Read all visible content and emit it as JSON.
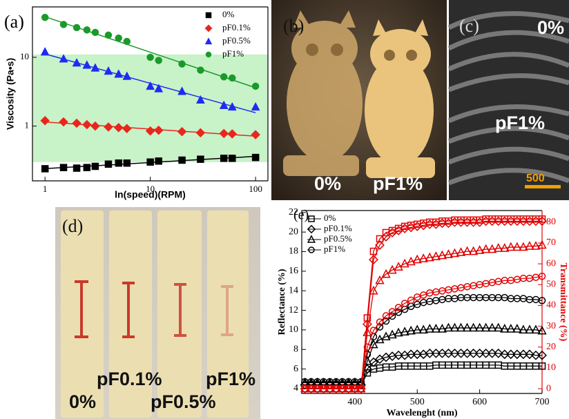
{
  "chart_data": [
    {
      "type": "scatter",
      "panel_label": "(a)",
      "x_label": "ln(speed)(RPM)",
      "y_label": "Viscosity (Pa•s)",
      "xlog": true,
      "ylog": true,
      "xlim": [
        0.76,
        131
      ],
      "ylim": [
        0.16,
        54
      ],
      "xticks": [
        1,
        10,
        100
      ],
      "yticks": [
        1,
        10
      ],
      "shaded_range": [
        0.3,
        11
      ],
      "shade_color": "#c8f2c8",
      "fit_lines": true,
      "filled_markers": true,
      "legend": "upper right",
      "x": [
        1,
        1.5,
        2,
        2.5,
        3,
        4,
        5,
        6,
        10,
        12,
        20,
        30,
        50,
        60,
        100
      ],
      "series": [
        {
          "name": "0%",
          "color": "#000000",
          "marker": "square",
          "values": [
            0.24,
            0.25,
            0.245,
            0.25,
            0.26,
            0.28,
            0.29,
            0.29,
            0.3,
            0.31,
            0.32,
            0.33,
            0.34,
            0.34,
            0.35
          ]
        },
        {
          "name": "pF0.1%",
          "color": "#e8261c",
          "marker": "diamond",
          "values": [
            1.2,
            1.15,
            1.1,
            1.05,
            1.0,
            0.97,
            0.95,
            0.92,
            0.85,
            0.87,
            0.83,
            0.8,
            0.78,
            0.77,
            0.75
          ]
        },
        {
          "name": "pF0.5%",
          "color": "#1c2cf0",
          "marker": "triangle",
          "values": [
            12,
            9.5,
            8.3,
            7.7,
            7,
            6.3,
            5.7,
            5.3,
            3.8,
            3.5,
            3.2,
            2.4,
            2,
            1.9,
            1.9
          ]
        },
        {
          "name": "pF1%",
          "color": "#1a9a2a",
          "marker": "circle",
          "values": [
            38,
            30,
            27,
            25,
            23,
            21,
            19,
            17,
            10,
            9,
            8,
            6.5,
            5.2,
            5,
            3.8
          ]
        }
      ]
    },
    {
      "type": "line",
      "panel_label": "(e)",
      "x_label": "Wavelenght (nm)",
      "y_label": "Reflectance (%)",
      "y2_label": "Transmittance (%)",
      "xlim": [
        315,
        700
      ],
      "ylim": [
        3.5,
        22.2
      ],
      "y2lim": [
        -2.3,
        85.6
      ],
      "xticks": [
        400,
        500,
        600,
        700
      ],
      "yticks": [
        4,
        6,
        8,
        10,
        12,
        14,
        16,
        18,
        20,
        22
      ],
      "y2ticks": [
        0,
        10,
        20,
        30,
        40,
        50,
        60,
        70,
        80
      ],
      "y2_color": "#e00000",
      "filled_markers": false,
      "legend": "upper left",
      "x": [
        320,
        330,
        340,
        350,
        360,
        370,
        380,
        390,
        400,
        410,
        420,
        430,
        440,
        450,
        460,
        470,
        480,
        490,
        500,
        510,
        520,
        530,
        540,
        550,
        560,
        570,
        580,
        590,
        600,
        610,
        620,
        630,
        640,
        650,
        660,
        670,
        680,
        690,
        700
      ],
      "series": [
        {
          "name": "0%",
          "color": "#000000",
          "marker": "square",
          "values": [
            4.3,
            4.3,
            4.3,
            4.3,
            4.3,
            4.3,
            4.3,
            4.3,
            4.3,
            4.3,
            5.6,
            6.0,
            6.1,
            6.2,
            6.2,
            6.3,
            6.3,
            6.3,
            6.3,
            6.3,
            6.3,
            6.4,
            6.4,
            6.4,
            6.4,
            6.4,
            6.4,
            6.4,
            6.4,
            6.4,
            6.4,
            6.4,
            6.3,
            6.3,
            6.3,
            6.3,
            6.3,
            6.3,
            6.3
          ]
        },
        {
          "name": "pF0.1%",
          "color": "#000000",
          "marker": "diamond",
          "values": [
            4.4,
            4.4,
            4.4,
            4.4,
            4.4,
            4.4,
            4.4,
            4.4,
            4.4,
            4.4,
            6.0,
            6.7,
            7.0,
            7.2,
            7.3,
            7.4,
            7.4,
            7.5,
            7.5,
            7.5,
            7.6,
            7.6,
            7.6,
            7.6,
            7.6,
            7.6,
            7.6,
            7.6,
            7.6,
            7.6,
            7.6,
            7.6,
            7.5,
            7.5,
            7.5,
            7.5,
            7.5,
            7.4,
            7.4
          ]
        },
        {
          "name": "pF0.5%",
          "color": "#000000",
          "marker": "triangle",
          "values": [
            4.6,
            4.6,
            4.6,
            4.6,
            4.6,
            4.6,
            4.6,
            4.6,
            4.6,
            4.6,
            6.8,
            8.5,
            9.0,
            9.3,
            9.5,
            9.7,
            9.8,
            9.9,
            10.0,
            10.0,
            10.1,
            10.1,
            10.1,
            10.2,
            10.2,
            10.2,
            10.2,
            10.2,
            10.2,
            10.2,
            10.2,
            10.2,
            10.1,
            10.1,
            10.1,
            10.0,
            10.0,
            10.0,
            9.9
          ]
        },
        {
          "name": "pF1%",
          "color": "#000000",
          "marker": "circle",
          "values": [
            4.7,
            4.7,
            4.7,
            4.7,
            4.7,
            4.7,
            4.7,
            4.7,
            4.7,
            4.7,
            7.5,
            9.3,
            10.3,
            10.9,
            11.4,
            11.8,
            12.1,
            12.4,
            12.6,
            12.8,
            12.9,
            13.0,
            13.1,
            13.2,
            13.2,
            13.3,
            13.3,
            13.3,
            13.3,
            13.3,
            13.3,
            13.3,
            13.3,
            13.2,
            13.2,
            13.2,
            13.1,
            13.1,
            13.0
          ]
        },
        {
          "color": "#e00000",
          "marker": "square",
          "axis": "y2",
          "values": [
            0,
            0,
            0,
            0,
            0,
            0,
            0,
            0,
            0,
            0,
            34,
            66,
            72,
            75,
            76,
            77,
            78,
            78.5,
            79,
            79.5,
            80,
            80,
            80.5,
            80.5,
            81,
            81,
            81,
            81,
            81,
            81.5,
            81.5,
            81.5,
            81.5,
            81.5,
            81.5,
            81.5,
            81.5,
            81.5,
            81.5
          ]
        },
        {
          "color": "#e00000",
          "marker": "diamond",
          "axis": "y2",
          "values": [
            0,
            0,
            0,
            0,
            0,
            0,
            0,
            0,
            0,
            0,
            31,
            62,
            69,
            73,
            75,
            76,
            77,
            77.5,
            78,
            78.5,
            79,
            79,
            79.5,
            79.5,
            80,
            80,
            80,
            80,
            80,
            80.5,
            80.5,
            80.5,
            80.5,
            80.5,
            80.5,
            80.5,
            80.5,
            80.5,
            80.5
          ]
        },
        {
          "color": "#e00000",
          "marker": "triangle",
          "axis": "y2",
          "values": [
            0,
            0,
            0,
            0,
            0,
            0,
            0,
            0,
            0,
            0,
            27,
            47,
            52,
            55,
            57,
            58.5,
            60,
            61,
            62,
            62.5,
            63,
            63.5,
            64,
            64.5,
            65,
            65.5,
            66,
            66,
            66.5,
            67,
            67,
            67.5,
            67.5,
            68,
            68,
            68,
            68.5,
            68.5,
            69
          ]
        },
        {
          "color": "#e00000",
          "marker": "circle",
          "axis": "y2",
          "values": [
            0,
            0,
            0,
            0,
            0,
            0,
            0,
            0,
            0,
            0,
            20,
            28,
            32,
            35,
            37,
            39,
            41,
            42.5,
            44,
            45,
            46,
            46.5,
            47,
            47.5,
            48,
            48.5,
            49,
            49.5,
            50,
            50.5,
            51,
            51.5,
            52,
            52,
            52.5,
            53,
            53,
            53.5,
            54
          ]
        }
      ]
    }
  ],
  "photo_b": {
    "label": "(b)",
    "captions": [
      "0%",
      "pF1%"
    ]
  },
  "photo_c": {
    "label": "(c)",
    "captions": [
      "0%",
      "pF1%"
    ],
    "scale_bar": "500"
  },
  "photo_d": {
    "label": "(d)",
    "captions": [
      "0%",
      "pF0.1%",
      "pF0.5%",
      "pF1%"
    ]
  }
}
